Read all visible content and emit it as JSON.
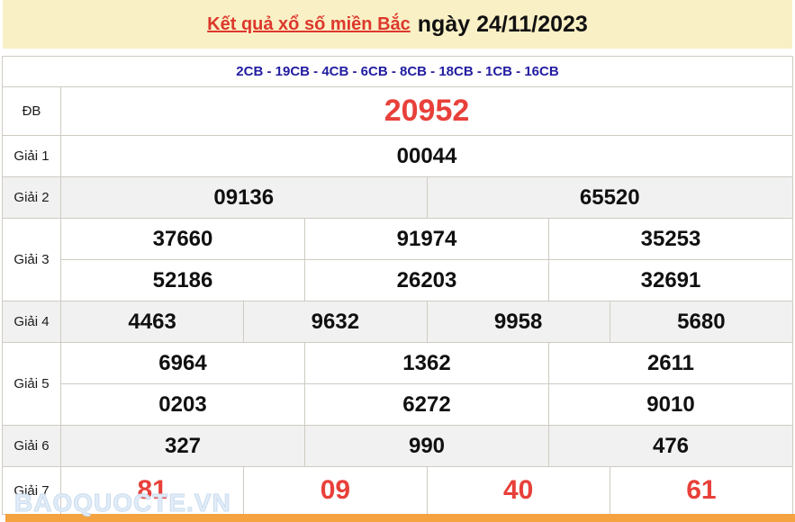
{
  "header": {
    "title_link": "Kết quả xổ số miền Bắc",
    "title_date": "ngày 24/11/2023"
  },
  "subheader": {
    "text": "2CB - 19CB - 4CB - 6CB - 8CB - 18CB - 1CB - 16CB"
  },
  "colors": {
    "band_bg": "#FAF0C6",
    "red_number": "#E8403A",
    "blue_subheader": "#221CA0",
    "stripe_bg": "#F1F1F1",
    "border": "#CFCBC3",
    "orange_bar": "#F5A241"
  },
  "prizes": [
    {
      "label": "ĐB",
      "style": "special",
      "shaded": false,
      "rows": [
        [
          "20952"
        ]
      ]
    },
    {
      "label": "Giải 1",
      "style": "",
      "shaded": false,
      "rows": [
        [
          "00044"
        ]
      ]
    },
    {
      "label": "Giải 2",
      "style": "",
      "shaded": true,
      "rows": [
        [
          "09136",
          "65520"
        ]
      ]
    },
    {
      "label": "Giải 3",
      "style": "",
      "shaded": false,
      "rows": [
        [
          "37660",
          "91974",
          "35253"
        ],
        [
          "52186",
          "26203",
          "32691"
        ]
      ]
    },
    {
      "label": "Giải 4",
      "style": "",
      "shaded": true,
      "rows": [
        [
          "4463",
          "9632",
          "9958",
          "5680"
        ]
      ]
    },
    {
      "label": "Giải 5",
      "style": "",
      "shaded": false,
      "rows": [
        [
          "6964",
          "1362",
          "2611"
        ],
        [
          "0203",
          "6272",
          "9010"
        ]
      ]
    },
    {
      "label": "Giải 6",
      "style": "",
      "shaded": true,
      "rows": [
        [
          "327",
          "990",
          "476"
        ]
      ]
    },
    {
      "label": "Giải 7",
      "style": "red-large",
      "shaded": false,
      "rows": [
        [
          "81",
          "09",
          "40",
          "61"
        ]
      ]
    }
  ],
  "watermark": "BAOQUOCTE.VN"
}
